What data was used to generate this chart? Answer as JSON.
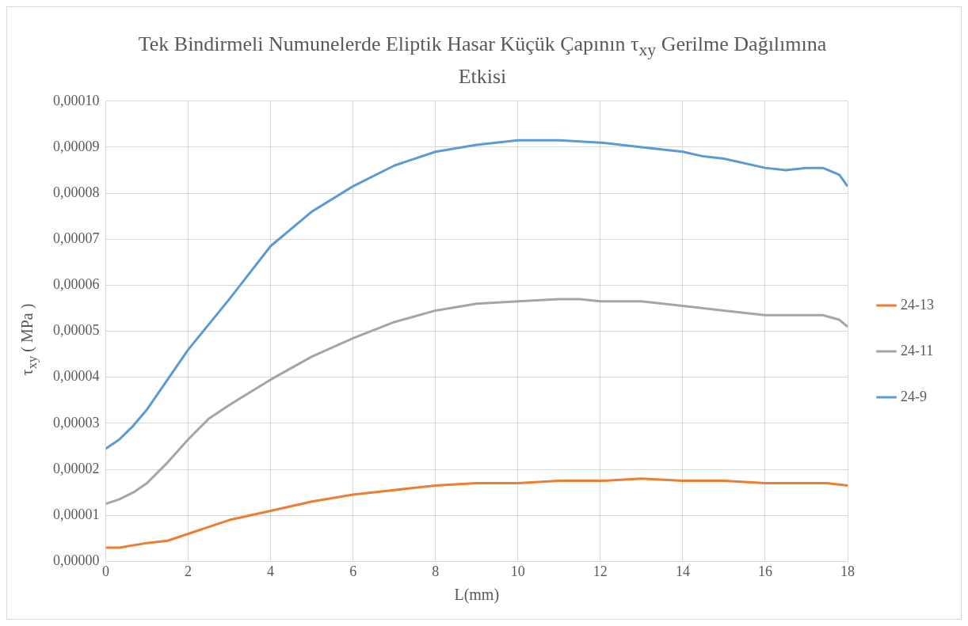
{
  "chart_data": {
    "type": "line",
    "title": "Tek Bindirmeli Numunelerde Eliptik Hasar Küçük Çapının τ$_{xy}$ Gerilme Dağılımına Etkisi",
    "xlabel": "L(mm)",
    "ylabel": "τ$_{xy}$ ( MPa )",
    "xlim": [
      0,
      18
    ],
    "xticks": [
      0,
      2,
      4,
      6,
      8,
      10,
      12,
      14,
      16,
      18
    ],
    "ylim": [
      0,
      0.0001
    ],
    "yticks": [
      {
        "value": 0,
        "label": "0,00000"
      },
      {
        "value": 1e-05,
        "label": "0,00001"
      },
      {
        "value": 2e-05,
        "label": "0,00002"
      },
      {
        "value": 3e-05,
        "label": "0,00003"
      },
      {
        "value": 4e-05,
        "label": "0,00004"
      },
      {
        "value": 5e-05,
        "label": "0,00005"
      },
      {
        "value": 6e-05,
        "label": "0,00006"
      },
      {
        "value": 7e-05,
        "label": "0,00007"
      },
      {
        "value": 8e-05,
        "label": "0,00008"
      },
      {
        "value": 9e-05,
        "label": "0,00009"
      },
      {
        "value": 0.0001,
        "label": "0,00010"
      }
    ],
    "grid": true,
    "legend": "right",
    "series": [
      {
        "name": "24-13",
        "color": "#ed7d31",
        "x": [
          0,
          0.33,
          1,
          1.5,
          2,
          3,
          4,
          5,
          6,
          7,
          8,
          9,
          10,
          11,
          12,
          13,
          14,
          15,
          16,
          17,
          17.5,
          18
        ],
        "values": [
          3e-06,
          3e-06,
          4e-06,
          4.5e-06,
          6e-06,
          9e-06,
          1.1e-05,
          1.3e-05,
          1.45e-05,
          1.55e-05,
          1.65e-05,
          1.7e-05,
          1.7e-05,
          1.75e-05,
          1.75e-05,
          1.8e-05,
          1.75e-05,
          1.75e-05,
          1.7e-05,
          1.7e-05,
          1.7e-05,
          1.65e-05
        ]
      },
      {
        "name": "24-11",
        "color": "#a5a5a5",
        "x": [
          0,
          0.33,
          0.67,
          1,
          1.5,
          2,
          2.5,
          3,
          4,
          5,
          6,
          7,
          8,
          9,
          10,
          11,
          11.5,
          12,
          13,
          14,
          15,
          16,
          16.5,
          17,
          17.4,
          17.8,
          18
        ],
        "values": [
          1.25e-05,
          1.35e-05,
          1.5e-05,
          1.7e-05,
          2.15e-05,
          2.65e-05,
          3.1e-05,
          3.4e-05,
          3.95e-05,
          4.45e-05,
          4.85e-05,
          5.2e-05,
          5.45e-05,
          5.6e-05,
          5.65e-05,
          5.7e-05,
          5.7e-05,
          5.65e-05,
          5.65e-05,
          5.55e-05,
          5.45e-05,
          5.35e-05,
          5.35e-05,
          5.35e-05,
          5.35e-05,
          5.25e-05,
          5.1e-05
        ]
      },
      {
        "name": "24-9",
        "color": "#5b9bd5",
        "x": [
          0,
          0.33,
          0.67,
          1,
          1.5,
          2,
          2.5,
          3,
          4,
          5,
          6,
          7,
          8,
          9,
          10,
          10.5,
          11,
          12,
          13,
          14,
          14.5,
          15,
          16,
          16.5,
          17,
          17.4,
          17.8,
          18
        ],
        "values": [
          2.45e-05,
          2.65e-05,
          2.95e-05,
          3.3e-05,
          3.95e-05,
          4.6e-05,
          5.15e-05,
          5.7e-05,
          6.85e-05,
          7.6e-05,
          8.15e-05,
          8.6e-05,
          8.9e-05,
          9.05e-05,
          9.15e-05,
          9.15e-05,
          9.15e-05,
          9.1e-05,
          9e-05,
          8.9e-05,
          8.8e-05,
          8.75e-05,
          8.55e-05,
          8.5e-05,
          8.55e-05,
          8.55e-05,
          8.4e-05,
          8.15e-05
        ]
      }
    ]
  }
}
